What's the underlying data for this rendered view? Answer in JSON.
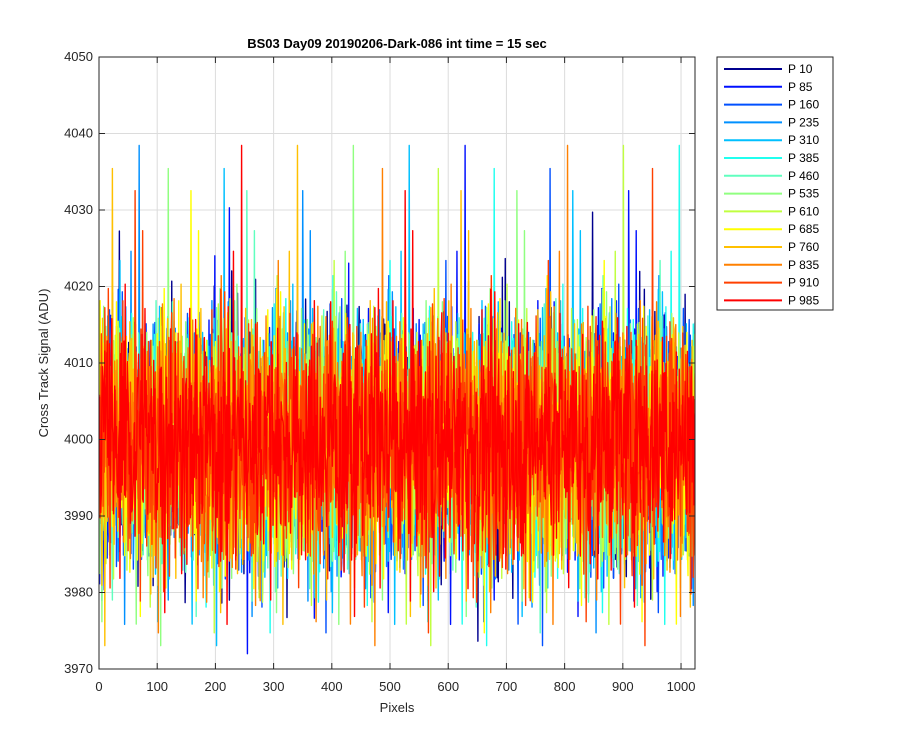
{
  "chart_data": {
    "type": "line",
    "title": "BS03 Day09 20190206-Dark-086 int time = 15 sec",
    "xlabel": "Pixels",
    "ylabel": "Cross Track Signal (ADU)",
    "xlim": [
      0,
      1024
    ],
    "ylim": [
      3970,
      4050
    ],
    "xticks": [
      0,
      100,
      200,
      300,
      400,
      500,
      600,
      700,
      800,
      900,
      1000
    ],
    "yticks": [
      3970,
      3980,
      3990,
      4000,
      4010,
      4020,
      4030,
      4040,
      4050
    ],
    "grid": true,
    "legend_position": "outside-top-right",
    "noise_model": {
      "mean": 4000,
      "typical_swing": 8,
      "min_observed": 3972,
      "max_observed": 4041,
      "points_per_series": 1024
    },
    "series": [
      {
        "name": "P 10",
        "color": "#00008f"
      },
      {
        "name": "P 85",
        "color": "#0010ff"
      },
      {
        "name": "P 160",
        "color": "#0050ff"
      },
      {
        "name": "P 235",
        "color": "#0090ff"
      },
      {
        "name": "P 310",
        "color": "#00c0ff"
      },
      {
        "name": "P 385",
        "color": "#20ffef"
      },
      {
        "name": "P 460",
        "color": "#60ffbf"
      },
      {
        "name": "P 535",
        "color": "#90ff80"
      },
      {
        "name": "P 610",
        "color": "#c0ff40"
      },
      {
        "name": "P 685",
        "color": "#ffff00"
      },
      {
        "name": "P 760",
        "color": "#ffc000"
      },
      {
        "name": "P 835",
        "color": "#ff8000"
      },
      {
        "name": "P 910",
        "color": "#ff4000"
      },
      {
        "name": "P 985",
        "color": "#ff0000"
      }
    ]
  }
}
